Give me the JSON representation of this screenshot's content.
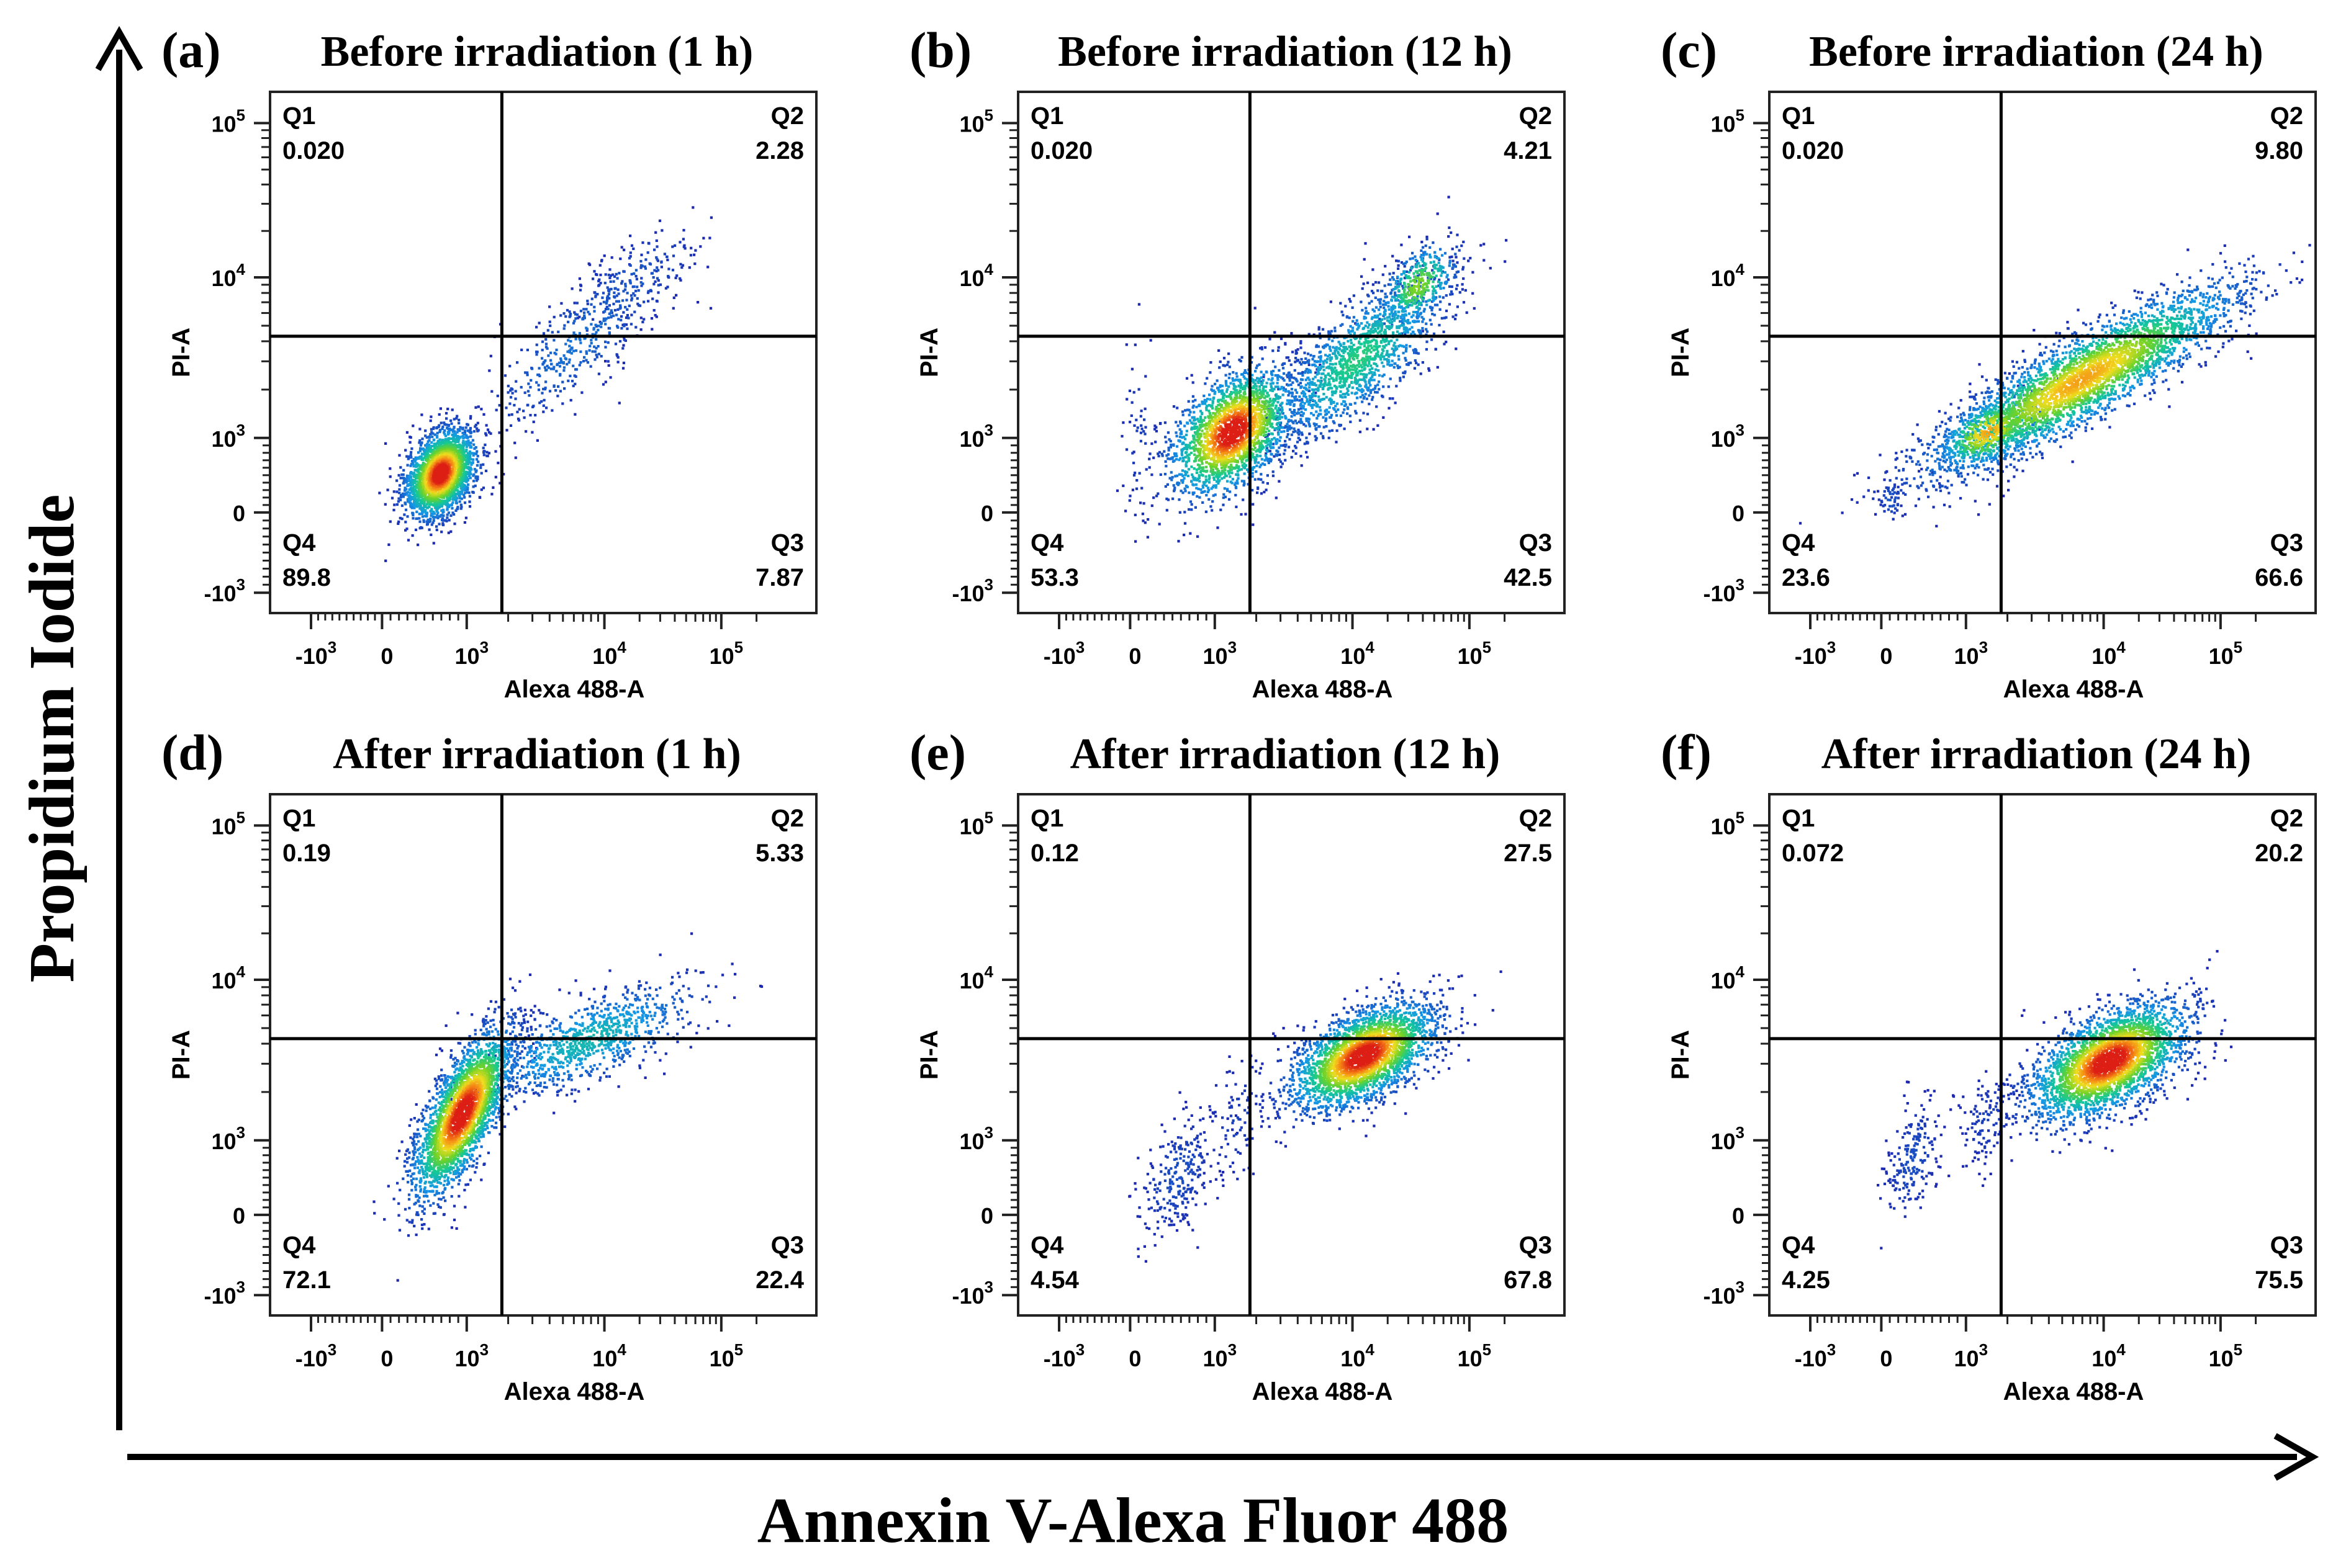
{
  "figure": {
    "y_axis_label": "Propidium Iodide",
    "x_axis_label": "Annexin V-Alexa Fluor 488"
  },
  "chart_data": [
    {
      "type": "scatter",
      "panel": "(a)",
      "title": "Before irradiation (1 h)",
      "xlabel": "Alexa 488-A",
      "ylabel": "PI-A",
      "x_ticks": [
        "-10^3",
        "0",
        "10^3",
        "10^4",
        "10^5"
      ],
      "y_ticks": [
        "10^5",
        "10^4",
        "10^3",
        "0",
        "-10^3"
      ],
      "quadrants": [
        {
          "name": "Q1",
          "value": "0.020"
        },
        {
          "name": "Q2",
          "value": "2.28"
        },
        {
          "name": "Q3",
          "value": "7.87"
        },
        {
          "name": "Q4",
          "value": "89.8"
        }
      ],
      "gate": {
        "x": 1800,
        "y": 4300
      }
    },
    {
      "type": "scatter",
      "panel": "(b)",
      "title": "Before irradiation (12 h)",
      "xlabel": "Alexa 488-A",
      "ylabel": "PI-A",
      "x_ticks": [
        "-10^3",
        "0",
        "10^3",
        "10^4",
        "10^5"
      ],
      "y_ticks": [
        "10^5",
        "10^4",
        "10^3",
        "0",
        "-10^3"
      ],
      "quadrants": [
        {
          "name": "Q1",
          "value": "0.020"
        },
        {
          "name": "Q2",
          "value": "4.21"
        },
        {
          "name": "Q3",
          "value": "42.5"
        },
        {
          "name": "Q4",
          "value": "53.3"
        }
      ],
      "gate": {
        "x": 1800,
        "y": 4300
      }
    },
    {
      "type": "scatter",
      "panel": "(c)",
      "title": "Before irradiation (24 h)",
      "xlabel": "Alexa 488-A",
      "ylabel": "PI-A",
      "x_ticks": [
        "-10^3",
        "0",
        "10^3",
        "10^4",
        "10^5"
      ],
      "y_ticks": [
        "10^5",
        "10^4",
        "10^3",
        "0",
        "-10^3"
      ],
      "quadrants": [
        {
          "name": "Q1",
          "value": "0.020"
        },
        {
          "name": "Q2",
          "value": "9.80"
        },
        {
          "name": "Q3",
          "value": "66.6"
        },
        {
          "name": "Q4",
          "value": "23.6"
        }
      ],
      "gate": {
        "x": 1800,
        "y": 4300
      }
    },
    {
      "type": "scatter",
      "panel": "(d)",
      "title": "After irradiation (1 h)",
      "xlabel": "Alexa 488-A",
      "ylabel": "PI-A",
      "x_ticks": [
        "-10^3",
        "0",
        "10^3",
        "10^4",
        "10^5"
      ],
      "y_ticks": [
        "10^5",
        "10^4",
        "10^3",
        "0",
        "-10^3"
      ],
      "quadrants": [
        {
          "name": "Q1",
          "value": "0.19"
        },
        {
          "name": "Q2",
          "value": "5.33"
        },
        {
          "name": "Q3",
          "value": "22.4"
        },
        {
          "name": "Q4",
          "value": "72.1"
        }
      ],
      "gate": {
        "x": 1800,
        "y": 4300
      }
    },
    {
      "type": "scatter",
      "panel": "(e)",
      "title": "After irradiation (12 h)",
      "xlabel": "Alexa 488-A",
      "ylabel": "PI-A",
      "x_ticks": [
        "-10^3",
        "0",
        "10^3",
        "10^4",
        "10^5"
      ],
      "y_ticks": [
        "10^5",
        "10^4",
        "10^3",
        "0",
        "-10^3"
      ],
      "quadrants": [
        {
          "name": "Q1",
          "value": "0.12"
        },
        {
          "name": "Q2",
          "value": "27.5"
        },
        {
          "name": "Q3",
          "value": "67.8"
        },
        {
          "name": "Q4",
          "value": "4.54"
        }
      ],
      "gate": {
        "x": 1800,
        "y": 4300
      }
    },
    {
      "type": "scatter",
      "panel": "(f)",
      "title": "After irradiation (24 h)",
      "xlabel": "Alexa 488-A",
      "ylabel": "PI-A",
      "x_ticks": [
        "-10^3",
        "0",
        "10^3",
        "10^4",
        "10^5"
      ],
      "y_ticks": [
        "10^5",
        "10^4",
        "10^3",
        "0",
        "-10^3"
      ],
      "quadrants": [
        {
          "name": "Q1",
          "value": "0.072"
        },
        {
          "name": "Q2",
          "value": "20.2"
        },
        {
          "name": "Q3",
          "value": "75.5"
        },
        {
          "name": "Q4",
          "value": "4.25"
        }
      ],
      "gate": {
        "x": 1800,
        "y": 4300
      }
    }
  ]
}
